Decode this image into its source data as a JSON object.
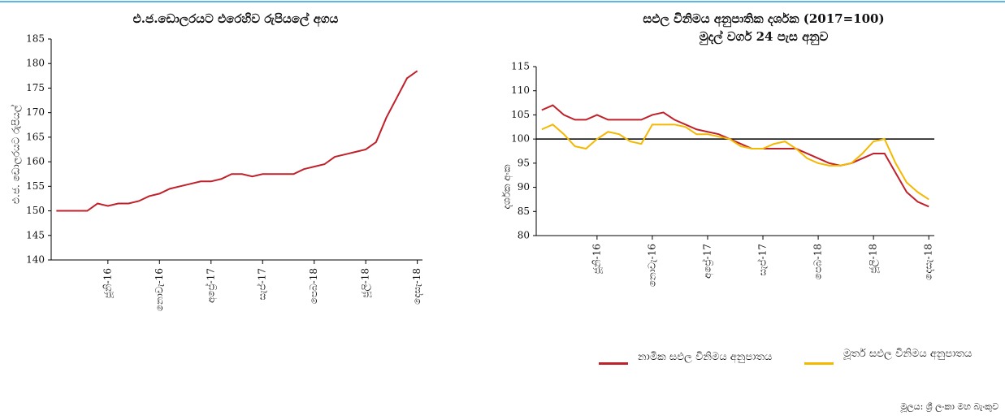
{
  "chart_data": [
    {
      "type": "line",
      "title": "එ.ජ.ඩොලරයට එරෙහිව රුපියලේ අගය",
      "y_label": "එ.ජ. ඩොලරයට රුපියල්",
      "categories": [
        null,
        null,
        null,
        null,
        null,
        "ජූනි-16",
        null,
        null,
        null,
        null,
        "නොවැ-16",
        null,
        null,
        null,
        null,
        "අප්‍රේ-17",
        null,
        null,
        null,
        null,
        "සැප්-17",
        null,
        null,
        null,
        null,
        "පෙබ-18",
        null,
        null,
        null,
        null,
        "ජූලි-18",
        null,
        null,
        null,
        null,
        "දෙසැ-18"
      ],
      "values": [
        150,
        150,
        150,
        150,
        151.5,
        151,
        151.5,
        151.5,
        152,
        153,
        153.5,
        154.5,
        155,
        155.5,
        156,
        156,
        156.5,
        157.5,
        157.5,
        157,
        157.5,
        157.5,
        157.5,
        157.5,
        158.5,
        159,
        159.5,
        161,
        161.5,
        162,
        162.5,
        164,
        169,
        173,
        177,
        178.5
      ],
      "color": "#c0202a",
      "ylim": [
        140,
        185
      ],
      "yticks": [
        140,
        145,
        150,
        155,
        160,
        165,
        170,
        175,
        180,
        185
      ]
    },
    {
      "type": "line",
      "title": "සඵල විනිමය අනුපාතික දර්ශක  (2017=100)",
      "subtitle": "මුදල් වර්ග 24 පැස අනුව",
      "y_label": "දර්ශක අංක",
      "categories": [
        null,
        null,
        null,
        null,
        null,
        "ජූනි-16",
        null,
        null,
        null,
        null,
        "නොවැ-16",
        null,
        null,
        null,
        null,
        "අප්‍රේ-17",
        null,
        null,
        null,
        null,
        "සැප්-17",
        null,
        null,
        null,
        null,
        "පෙබ-18",
        null,
        null,
        null,
        null,
        "ජූලි-18",
        null,
        null,
        null,
        null,
        "දෙසැ-18"
      ],
      "series": [
        {
          "name": "නාමික සඵල විනිමය අනුපාතය",
          "color": "#c0202a",
          "values": [
            106,
            107,
            105,
            104,
            104,
            105,
            104,
            104,
            104,
            104,
            105,
            105.5,
            104,
            103,
            102,
            101.5,
            101,
            100,
            99,
            98,
            98,
            98,
            98,
            98,
            97,
            96,
            95,
            94.5,
            95,
            96,
            97,
            97,
            93,
            89,
            87,
            86
          ]
        },
        {
          "name": "මූර්ත සඵල විනිමය අනුපාතය",
          "color": "#f5b800",
          "values": [
            102,
            103,
            101,
            98.5,
            98,
            100,
            101.5,
            101,
            99.5,
            99,
            103,
            103,
            103,
            102.5,
            101,
            101,
            100.5,
            100,
            98.5,
            98,
            98,
            99,
            99.5,
            98,
            96,
            95,
            94.5,
            94.5,
            95,
            97,
            99.5,
            100,
            95,
            91,
            89,
            87.5
          ]
        }
      ],
      "reference_line": 100,
      "ylim": [
        80,
        115
      ],
      "yticks": [
        80,
        85,
        90,
        95,
        100,
        105,
        110,
        115
      ]
    }
  ],
  "source": "මූලය: ශ්‍රී ලංකා මහ බැංකුව"
}
